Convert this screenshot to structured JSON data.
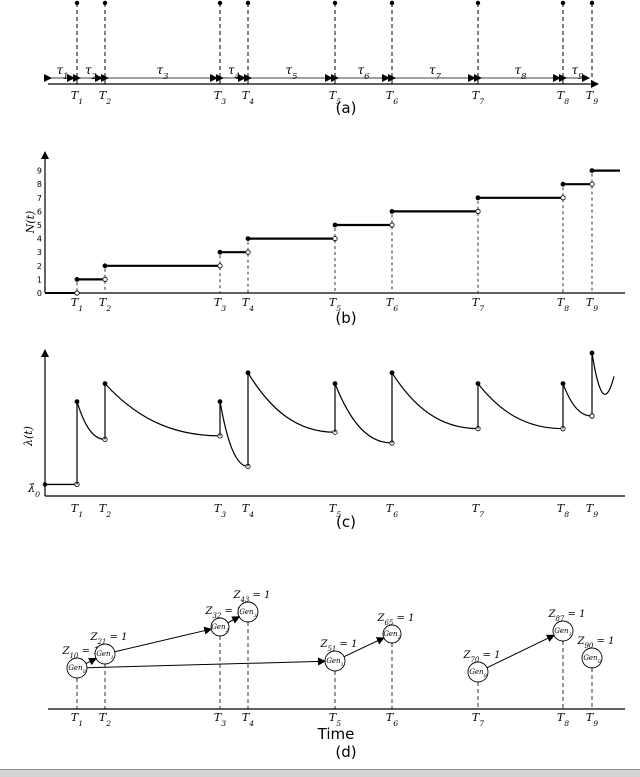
{
  "event_labels": [
    "T1",
    "T2",
    "T3",
    "T4",
    "T5",
    "T6",
    "T7",
    "T8",
    "T9"
  ],
  "events": [
    77,
    105,
    220,
    248,
    335,
    392,
    478,
    563,
    592
  ],
  "interval_labels": [
    "τ1",
    "τ2",
    "τ3",
    "τ4",
    "τ5",
    "τ6",
    "τ7",
    "τ8",
    "τ9"
  ],
  "panel_a": {
    "caption": "(a)"
  },
  "panel_b": {
    "caption": "(b)",
    "ylabel": "N(t)",
    "ytick_labels": [
      "0",
      "1",
      "2",
      "3",
      "4",
      "5",
      "6",
      "7",
      "8",
      "9"
    ]
  },
  "panel_c": {
    "caption": "(c)",
    "ylabel": "λ(t)",
    "baseline_label": "λ̂0",
    "peaks": [
      0.48,
      0.58,
      0.48,
      0.64,
      0.58,
      0.64,
      0.58,
      0.58,
      0.75
    ],
    "pre_jump": [
      0.27,
      0.29,
      0.12,
      0.31,
      0.25,
      0.33,
      0.33,
      0.4,
      0.42
    ]
  },
  "panel_d": {
    "caption": "(d)",
    "xlabel": "Time",
    "nodes": [
      {
        "event": 1,
        "z": "Z10 = 1",
        "gen": "Gen0"
      },
      {
        "event": 2,
        "z": "Z21 = 1",
        "gen": "Gen1"
      },
      {
        "event": 3,
        "z": "Z32 = 1",
        "gen": "Gen2"
      },
      {
        "event": 4,
        "z": "Z43 = 1",
        "gen": "Gen3"
      },
      {
        "event": 5,
        "z": "Z51 = 1",
        "gen": "Gen1"
      },
      {
        "event": 6,
        "z": "Z65 = 1",
        "gen": "Gen2"
      },
      {
        "event": 7,
        "z": "Z70 = 1",
        "gen": "Gen0"
      },
      {
        "event": 8,
        "z": "Z87 = 1",
        "gen": "Gen1"
      },
      {
        "event": 9,
        "z": "Z90 = 1",
        "gen": "Gen0"
      }
    ],
    "edges": [
      [
        1,
        2
      ],
      [
        2,
        3
      ],
      [
        3,
        4
      ],
      [
        1,
        5
      ],
      [
        5,
        6
      ],
      [
        7,
        8
      ]
    ]
  }
}
